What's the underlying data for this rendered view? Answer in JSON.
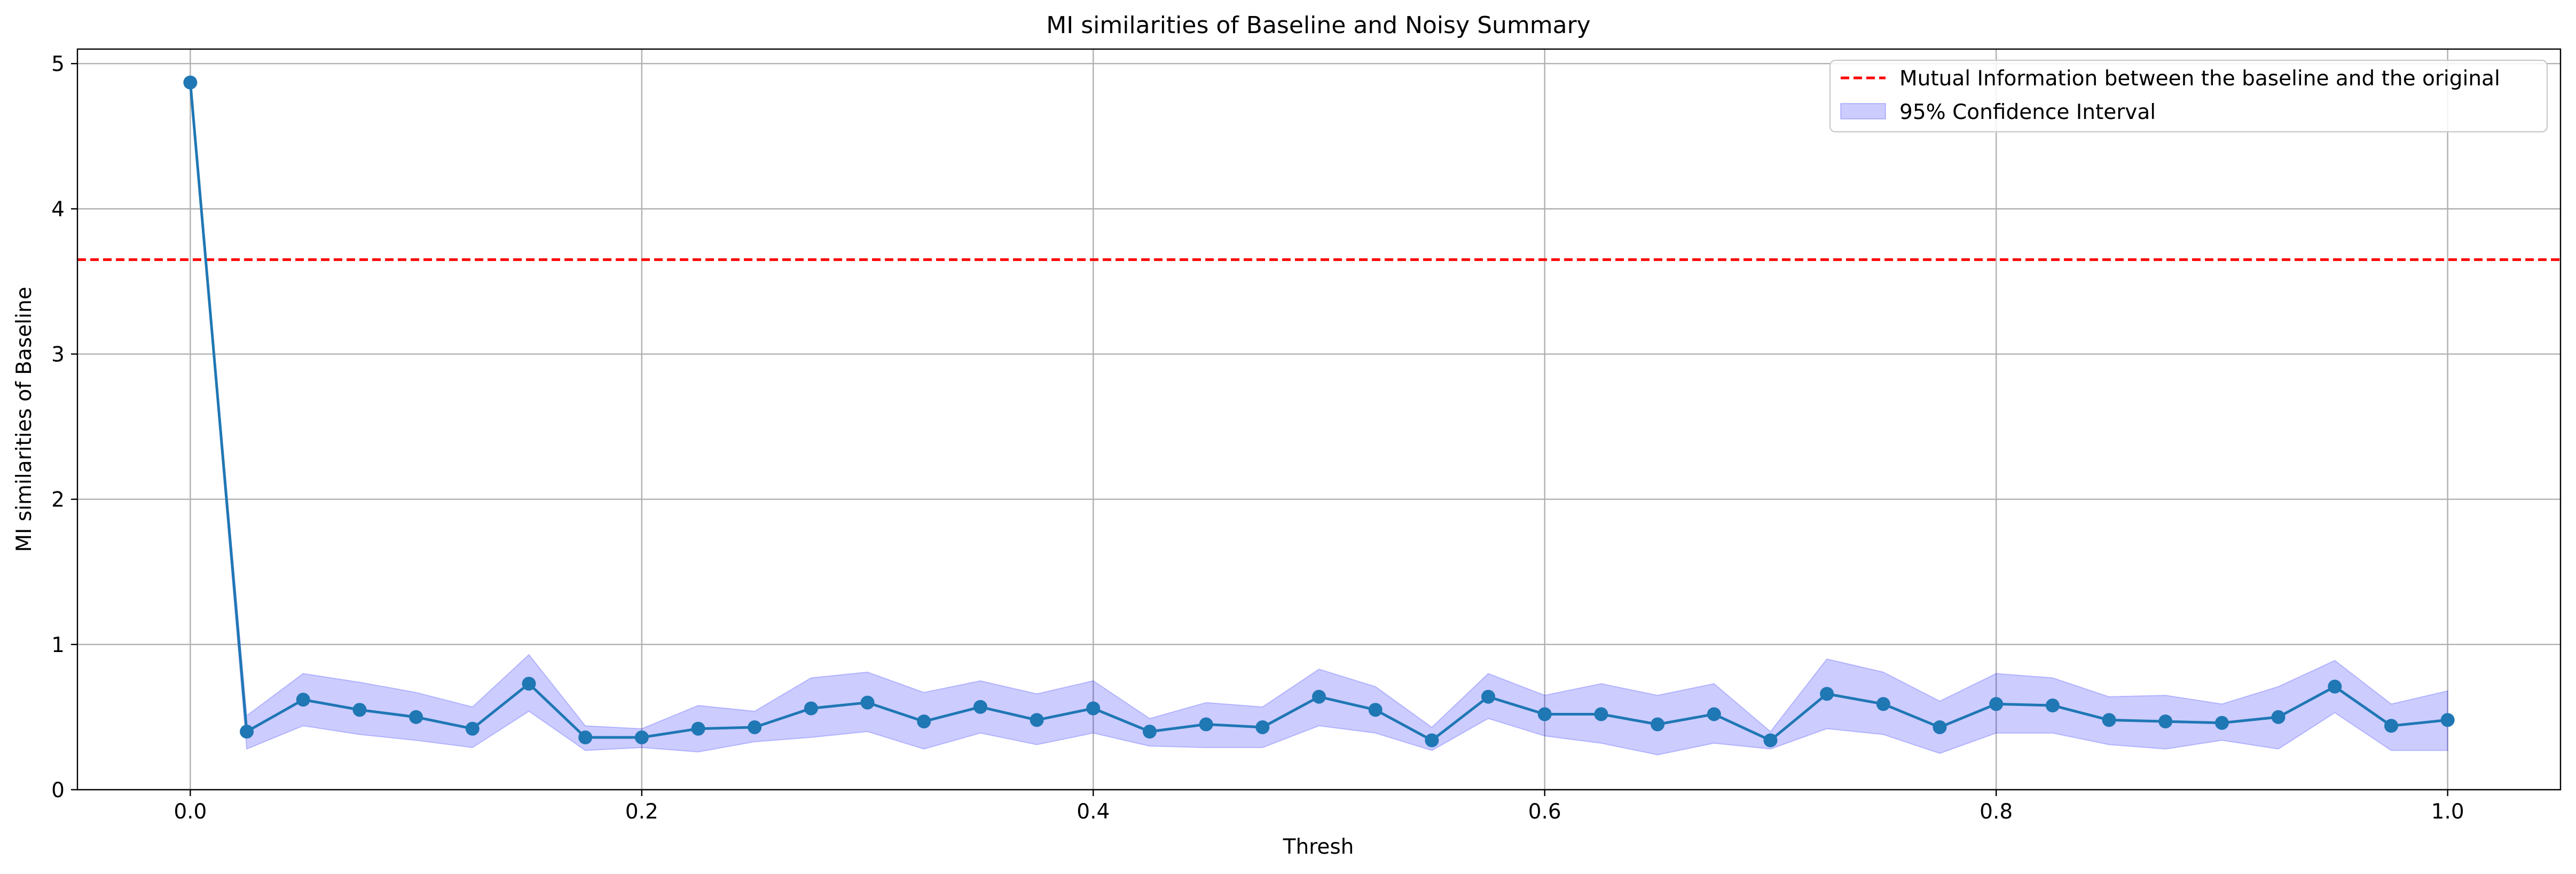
{
  "chart_data": {
    "type": "line",
    "title": "MI similarities of Baseline and Noisy Summary",
    "xlabel": "Thresh",
    "ylabel": "MI similarities of Baseline",
    "xlim": [
      -0.05,
      1.05
    ],
    "ylim": [
      0,
      5.1
    ],
    "grid": true,
    "legend_position": "top-right",
    "x_ticks": [
      0.0,
      0.2,
      0.4,
      0.6,
      0.8,
      1.0
    ],
    "x_tick_labels": [
      "0.0",
      "0.2",
      "0.4",
      "0.6",
      "0.8",
      "1.0"
    ],
    "y_ticks": [
      0,
      1,
      2,
      3,
      4,
      5
    ],
    "y_tick_labels": [
      "0",
      "1",
      "2",
      "3",
      "4",
      "5"
    ],
    "series": [
      {
        "color": "#1f77b4",
        "x": [
          0.0,
          0.025,
          0.05,
          0.075,
          0.1,
          0.125,
          0.15,
          0.175,
          0.2,
          0.225,
          0.25,
          0.275,
          0.3,
          0.325,
          0.35,
          0.375,
          0.4,
          0.425,
          0.45,
          0.475,
          0.5,
          0.525,
          0.55,
          0.575,
          0.6,
          0.625,
          0.65,
          0.675,
          0.7,
          0.725,
          0.75,
          0.775,
          0.8,
          0.825,
          0.85,
          0.875,
          0.9,
          0.925,
          0.95,
          0.975,
          1.0
        ],
        "y": [
          4.87,
          0.4,
          0.62,
          0.55,
          0.5,
          0.42,
          0.73,
          0.36,
          0.36,
          0.42,
          0.43,
          0.56,
          0.6,
          0.47,
          0.57,
          0.48,
          0.56,
          0.4,
          0.45,
          0.43,
          0.64,
          0.55,
          0.34,
          0.64,
          0.52,
          0.52,
          0.45,
          0.52,
          0.34,
          0.66,
          0.59,
          0.43,
          0.59,
          0.58,
          0.48,
          0.47,
          0.46,
          0.5,
          0.71,
          0.44,
          0.48
        ]
      }
    ],
    "confidence_interval": {
      "name": "95% Confidence Interval",
      "color": "#0000ff",
      "lower": [
        4.87,
        0.28,
        0.44,
        0.38,
        0.34,
        0.29,
        0.54,
        0.27,
        0.29,
        0.26,
        0.33,
        0.36,
        0.4,
        0.28,
        0.39,
        0.31,
        0.39,
        0.3,
        0.29,
        0.29,
        0.44,
        0.39,
        0.27,
        0.49,
        0.37,
        0.32,
        0.24,
        0.32,
        0.28,
        0.42,
        0.38,
        0.25,
        0.39,
        0.39,
        0.31,
        0.28,
        0.34,
        0.28,
        0.53,
        0.27,
        0.27
      ],
      "upper": [
        4.87,
        0.51,
        0.8,
        0.74,
        0.67,
        0.57,
        0.93,
        0.44,
        0.42,
        0.58,
        0.54,
        0.77,
        0.81,
        0.67,
        0.75,
        0.66,
        0.75,
        0.49,
        0.6,
        0.57,
        0.83,
        0.71,
        0.43,
        0.8,
        0.65,
        0.73,
        0.65,
        0.73,
        0.4,
        0.9,
        0.81,
        0.61,
        0.8,
        0.77,
        0.64,
        0.65,
        0.59,
        0.71,
        0.89,
        0.59,
        0.68
      ]
    },
    "reference_line": {
      "name": "Mutual Information between the baseline and the original",
      "y": 3.65,
      "color": "#ff0000",
      "style": "dashed"
    }
  }
}
